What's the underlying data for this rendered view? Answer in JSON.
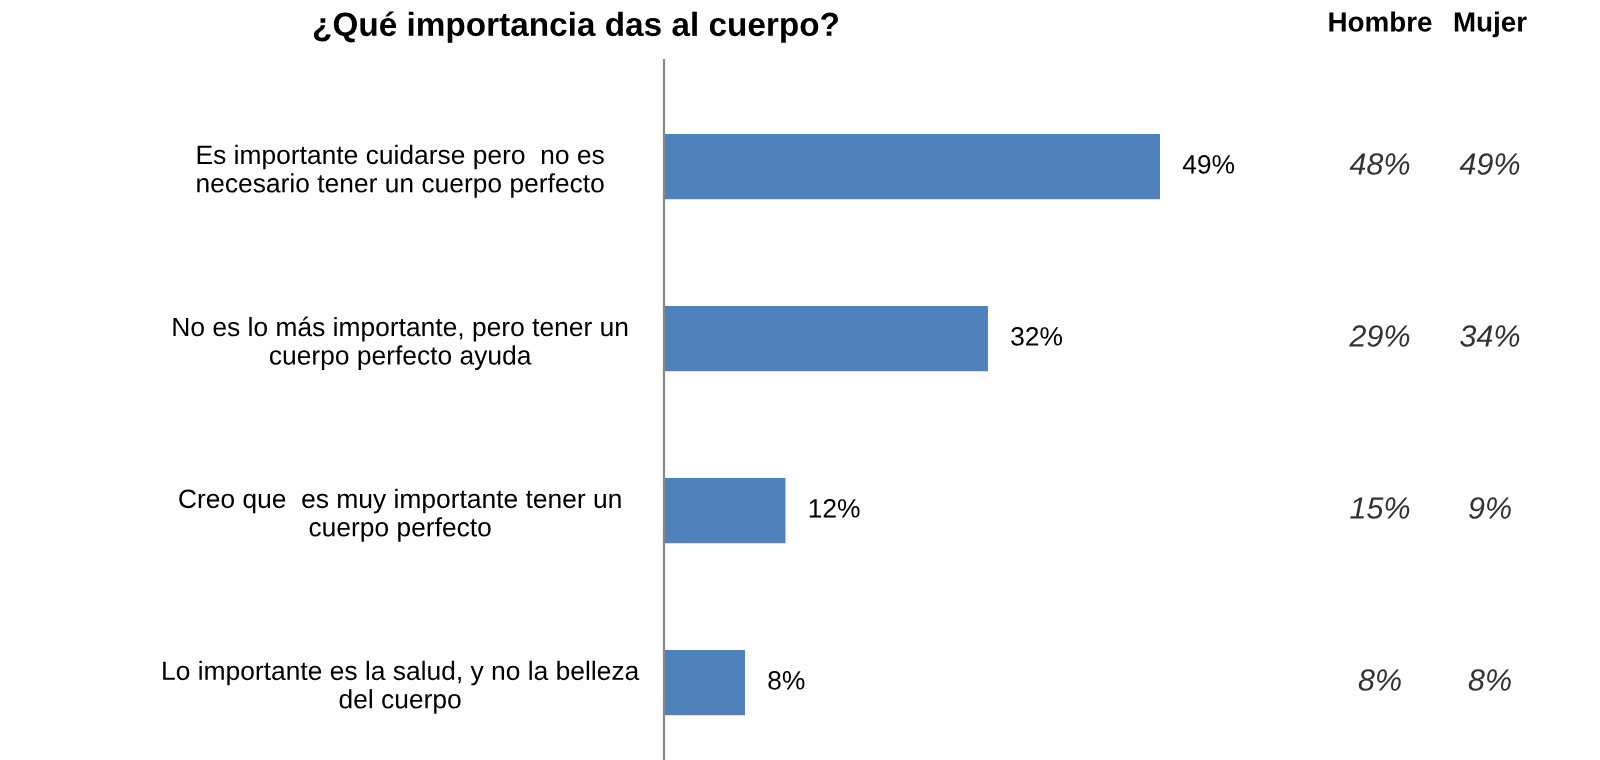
{
  "chart_data": {
    "type": "bar",
    "orientation": "horizontal",
    "title": "¿Qué importancia das al cuerpo?",
    "categories": [
      "Es importante cuidarse pero  no es\nnecesario tener un cuerpo perfecto",
      "No es lo más importante, pero tener un\ncuerpo perfecto ayuda",
      "Creo que  es muy importante tener un\ncuerpo perfecto",
      "Lo importante es la salud, y no la belleza\ndel cuerpo"
    ],
    "values": [
      49,
      32,
      12,
      8
    ],
    "color": "#4f81bd",
    "value_labels": [
      "49%",
      "32%",
      "12%",
      "8%"
    ],
    "annotations": [
      "Hombre",
      "Mujer",
      "48%",
      "49%",
      "29%",
      "34%",
      "15%",
      "9%",
      "8%",
      "8%"
    ],
    "legend": false,
    "grid": false
  }
}
